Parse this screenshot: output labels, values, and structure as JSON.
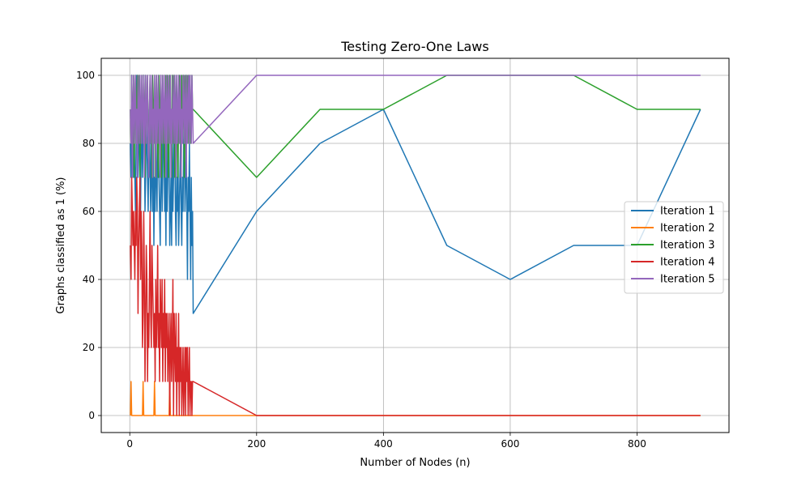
{
  "chart_data": {
    "type": "line",
    "title": "Testing Zero-One Laws",
    "xlabel": "Number of Nodes (n)",
    "ylabel": "Graphs classified as 1 (%)",
    "xlim": [
      -45,
      945
    ],
    "ylim": [
      -5,
      105
    ],
    "xticks": [
      0,
      200,
      400,
      600,
      800
    ],
    "yticks": [
      0,
      20,
      40,
      60,
      80,
      100
    ],
    "grid": true,
    "legend_position": "center-right",
    "series": [
      {
        "name": "Iteration 1",
        "color": "#1f77b4",
        "x": [
          1,
          2,
          3,
          4,
          5,
          6,
          7,
          8,
          9,
          10,
          11,
          12,
          13,
          14,
          15,
          16,
          17,
          18,
          19,
          20,
          21,
          22,
          23,
          24,
          25,
          26,
          27,
          28,
          29,
          30,
          31,
          32,
          33,
          34,
          35,
          36,
          37,
          38,
          39,
          40,
          41,
          42,
          43,
          44,
          45,
          46,
          47,
          48,
          49,
          50,
          51,
          52,
          53,
          54,
          55,
          56,
          57,
          58,
          59,
          60,
          61,
          62,
          63,
          64,
          65,
          66,
          67,
          68,
          69,
          70,
          71,
          72,
          73,
          74,
          75,
          76,
          77,
          78,
          79,
          80,
          81,
          82,
          83,
          84,
          85,
          86,
          87,
          88,
          89,
          90,
          91,
          92,
          93,
          94,
          95,
          96,
          97,
          98,
          99,
          100,
          200,
          300,
          400,
          500,
          600,
          700,
          800,
          900
        ],
        "y": [
          80,
          70,
          100,
          80,
          70,
          90,
          80,
          70,
          60,
          80,
          100,
          90,
          70,
          80,
          90,
          70,
          60,
          80,
          90,
          70,
          80,
          100,
          80,
          60,
          70,
          90,
          80,
          70,
          60,
          80,
          90,
          70,
          60,
          80,
          70,
          60,
          80,
          50,
          70,
          60,
          80,
          70,
          60,
          90,
          80,
          70,
          60,
          50,
          70,
          80,
          60,
          70,
          90,
          80,
          60,
          70,
          50,
          80,
          60,
          70,
          90,
          80,
          50,
          60,
          70,
          50,
          80,
          60,
          70,
          90,
          80,
          60,
          50,
          70,
          60,
          80,
          50,
          60,
          70,
          80,
          60,
          50,
          70,
          60,
          80,
          90,
          60,
          70,
          80,
          60,
          40,
          70,
          60,
          80,
          60,
          40,
          70,
          50,
          60,
          30,
          60,
          80,
          90,
          50,
          40,
          50,
          50,
          90
        ]
      },
      {
        "name": "Iteration 2",
        "color": "#ff7f0e",
        "x": [
          1,
          2,
          3,
          4,
          5,
          10,
          20,
          21,
          22,
          23,
          24,
          25,
          30,
          38,
          39,
          40,
          41,
          60,
          61,
          62,
          63,
          64,
          65,
          80,
          90,
          95,
          96,
          97,
          98,
          99,
          100,
          200,
          300,
          400,
          500,
          600,
          700,
          800,
          900
        ],
        "y": [
          0,
          10,
          0,
          0,
          0,
          0,
          0,
          10,
          0,
          0,
          0,
          0,
          0,
          0,
          10,
          0,
          0,
          0,
          0,
          0,
          10,
          0,
          0,
          0,
          0,
          0,
          0,
          0,
          0,
          0,
          0,
          0,
          0,
          0,
          0,
          0,
          0,
          0,
          0
        ]
      },
      {
        "name": "Iteration 3",
        "color": "#2ca02c",
        "x": [
          1,
          2,
          3,
          4,
          5,
          6,
          7,
          8,
          9,
          10,
          11,
          12,
          13,
          14,
          15,
          16,
          17,
          18,
          19,
          20,
          21,
          22,
          23,
          24,
          25,
          26,
          27,
          28,
          29,
          30,
          31,
          32,
          33,
          34,
          35,
          36,
          37,
          38,
          39,
          40,
          41,
          42,
          43,
          44,
          45,
          46,
          47,
          48,
          49,
          50,
          51,
          52,
          53,
          54,
          55,
          56,
          57,
          58,
          59,
          60,
          61,
          62,
          63,
          64,
          65,
          66,
          67,
          68,
          69,
          70,
          71,
          72,
          73,
          74,
          75,
          76,
          77,
          78,
          79,
          80,
          81,
          82,
          83,
          84,
          85,
          86,
          87,
          88,
          89,
          90,
          91,
          92,
          93,
          94,
          95,
          96,
          97,
          98,
          99,
          100,
          200,
          300,
          400,
          500,
          600,
          700,
          800,
          900
        ],
        "y": [
          90,
          80,
          100,
          90,
          80,
          100,
          70,
          90,
          100,
          80,
          90,
          100,
          80,
          90,
          100,
          70,
          90,
          80,
          100,
          90,
          80,
          100,
          90,
          70,
          100,
          80,
          90,
          100,
          80,
          70,
          90,
          100,
          80,
          90,
          70,
          100,
          80,
          90,
          100,
          70,
          80,
          100,
          90,
          80,
          70,
          100,
          90,
          80,
          100,
          70,
          90,
          100,
          80,
          90,
          70,
          100,
          80,
          90,
          100,
          80,
          70,
          90,
          100,
          80,
          90,
          70,
          100,
          80,
          90,
          100,
          70,
          80,
          90,
          100,
          80,
          70,
          90,
          100,
          80,
          90,
          70,
          100,
          80,
          90,
          100,
          70,
          80,
          90,
          100,
          80,
          90,
          100,
          80,
          90,
          100,
          80,
          90,
          100,
          90,
          90,
          70,
          90,
          90,
          100,
          100,
          100,
          90,
          90
        ]
      },
      {
        "name": "Iteration 4",
        "color": "#d62728",
        "x": [
          1,
          2,
          3,
          4,
          5,
          6,
          7,
          8,
          9,
          10,
          11,
          12,
          13,
          14,
          15,
          16,
          17,
          18,
          19,
          20,
          21,
          22,
          23,
          24,
          25,
          26,
          27,
          28,
          29,
          30,
          31,
          32,
          33,
          34,
          35,
          36,
          37,
          38,
          39,
          40,
          41,
          42,
          43,
          44,
          45,
          46,
          47,
          48,
          49,
          50,
          51,
          52,
          53,
          54,
          55,
          56,
          57,
          58,
          59,
          60,
          61,
          62,
          63,
          64,
          65,
          66,
          67,
          68,
          69,
          70,
          71,
          72,
          73,
          74,
          75,
          76,
          77,
          78,
          79,
          80,
          81,
          82,
          83,
          84,
          85,
          86,
          87,
          88,
          89,
          90,
          91,
          92,
          93,
          94,
          95,
          96,
          97,
          98,
          99,
          100,
          200,
          300,
          400,
          500,
          600,
          700,
          800,
          900
        ],
        "y": [
          50,
          40,
          70,
          60,
          50,
          60,
          50,
          40,
          60,
          50,
          70,
          60,
          30,
          50,
          60,
          70,
          40,
          60,
          50,
          20,
          30,
          60,
          40,
          10,
          30,
          50,
          40,
          10,
          30,
          20,
          40,
          60,
          30,
          20,
          50,
          40,
          30,
          20,
          30,
          10,
          40,
          20,
          30,
          50,
          20,
          30,
          10,
          40,
          30,
          20,
          40,
          10,
          30,
          20,
          40,
          10,
          30,
          20,
          30,
          10,
          20,
          30,
          0,
          20,
          30,
          10,
          20,
          40,
          0,
          30,
          20,
          10,
          30,
          0,
          20,
          10,
          30,
          0,
          20,
          10,
          20,
          0,
          10,
          20,
          0,
          10,
          20,
          0,
          20,
          10,
          20,
          0,
          10,
          20,
          0,
          10,
          10,
          0,
          10,
          10,
          0,
          0,
          0,
          0,
          0,
          0,
          0,
          0
        ]
      },
      {
        "name": "Iteration 5",
        "color": "#9467bd",
        "x": [
          1,
          2,
          3,
          4,
          5,
          6,
          7,
          8,
          9,
          10,
          11,
          12,
          13,
          14,
          15,
          16,
          17,
          18,
          19,
          20,
          21,
          22,
          23,
          24,
          25,
          26,
          27,
          28,
          29,
          30,
          31,
          32,
          33,
          34,
          35,
          36,
          37,
          38,
          39,
          40,
          41,
          42,
          43,
          44,
          45,
          46,
          47,
          48,
          49,
          50,
          51,
          52,
          53,
          54,
          55,
          56,
          57,
          58,
          59,
          60,
          61,
          62,
          63,
          64,
          65,
          66,
          67,
          68,
          69,
          70,
          71,
          72,
          73,
          74,
          75,
          76,
          77,
          78,
          79,
          80,
          81,
          82,
          83,
          84,
          85,
          86,
          87,
          88,
          89,
          90,
          91,
          92,
          93,
          94,
          95,
          96,
          97,
          98,
          99,
          100,
          200,
          300,
          400,
          500,
          600,
          700,
          800,
          900
        ],
        "y": [
          90,
          80,
          100,
          70,
          90,
          100,
          80,
          90,
          100,
          80,
          90,
          70,
          100,
          90,
          80,
          100,
          90,
          80,
          100,
          90,
          80,
          100,
          70,
          90,
          100,
          80,
          90,
          100,
          80,
          70,
          90,
          100,
          80,
          90,
          100,
          70,
          90,
          80,
          100,
          90,
          70,
          100,
          80,
          90,
          100,
          80,
          90,
          70,
          100,
          90,
          80,
          100,
          90,
          80,
          100,
          90,
          70,
          100,
          80,
          90,
          100,
          80,
          90,
          100,
          70,
          90,
          80,
          100,
          90,
          80,
          100,
          90,
          70,
          100,
          80,
          90,
          100,
          80,
          90,
          100,
          70,
          90,
          80,
          100,
          90,
          80,
          100,
          90,
          70,
          100,
          80,
          90,
          100,
          80,
          100,
          90,
          80,
          100,
          90,
          80,
          100,
          100,
          100,
          100,
          100,
          100,
          100,
          100
        ]
      }
    ]
  }
}
